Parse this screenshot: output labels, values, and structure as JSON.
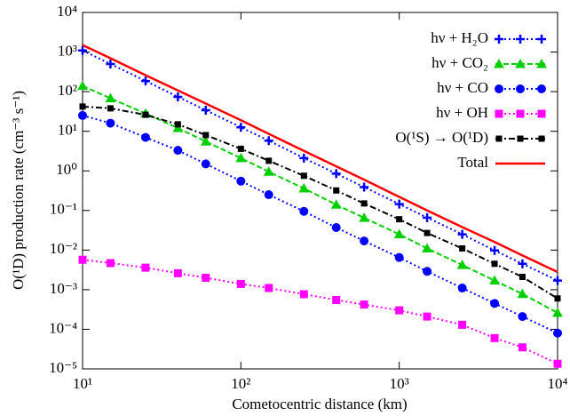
{
  "chart_data": {
    "type": "line",
    "xlabel": "Cometocentric distance (km)",
    "ylabel": "O(¹D) production rate (cm⁻³ s⁻¹)",
    "xscale": "log",
    "yscale": "log",
    "xlim": [
      10,
      10000
    ],
    "ylim": [
      1e-05,
      10000
    ],
    "xticks": [
      {
        "value": 10,
        "label": "10¹"
      },
      {
        "value": 100,
        "label": "10²"
      },
      {
        "value": 1000,
        "label": "10³"
      },
      {
        "value": 10000,
        "label": "10⁴"
      }
    ],
    "yticks": [
      {
        "value": 1e-05,
        "label": "10⁻⁵"
      },
      {
        "value": 0.0001,
        "label": "10⁻⁴"
      },
      {
        "value": 0.001,
        "label": "10⁻³"
      },
      {
        "value": 0.01,
        "label": "10⁻²"
      },
      {
        "value": 0.1,
        "label": "10⁻¹"
      },
      {
        "value": 1,
        "label": "10⁰"
      },
      {
        "value": 10,
        "label": "10¹"
      },
      {
        "value": 100,
        "label": "10²"
      },
      {
        "value": 1000,
        "label": "10³"
      },
      {
        "value": 10000,
        "label": "10⁴"
      }
    ],
    "legend": "top-right",
    "x": [
      10,
      15,
      25,
      40,
      60,
      100,
      150,
      250,
      400,
      600,
      1000,
      1500,
      2500,
      4000,
      6000,
      10000
    ],
    "series": [
      {
        "name": "hν + H₂O",
        "color": "#0000ff",
        "marker": "plus",
        "dash": "dotted",
        "values": [
          1100,
          500,
          186,
          74,
          34,
          12.6,
          5.8,
          2.1,
          0.85,
          0.39,
          0.145,
          0.066,
          0.025,
          0.0098,
          0.0045,
          0.0017
        ]
      },
      {
        "name": "hν + CO₂",
        "color": "#00d000",
        "marker": "triangle",
        "dash": "dashed",
        "values": [
          140,
          68,
          28,
          12,
          5.5,
          2.1,
          0.95,
          0.36,
          0.14,
          0.065,
          0.025,
          0.011,
          0.0042,
          0.0017,
          0.00078,
          0.00026
        ]
      },
      {
        "name": "hν + CO",
        "color": "#0000ff",
        "marker": "circle",
        "dash": "dotted",
        "values": [
          25,
          16,
          7,
          3.3,
          1.5,
          0.55,
          0.25,
          0.095,
          0.037,
          0.017,
          0.0065,
          0.0029,
          0.0011,
          0.00045,
          0.00021,
          8e-05
        ]
      },
      {
        "name": "hν + OH",
        "color": "#ff00ff",
        "marker": "square",
        "dash": "dotted",
        "values": [
          0.0057,
          0.0047,
          0.0036,
          0.0026,
          0.002,
          0.0014,
          0.0011,
          0.00077,
          0.00055,
          0.00042,
          0.0003,
          0.00021,
          0.00013,
          6e-05,
          3.5e-05,
          1.35e-05
        ]
      },
      {
        "name": "O(¹S) → O(¹D)",
        "color": "#000000",
        "marker": "smallsquare",
        "dash": "dashdot",
        "values": [
          42,
          38,
          26,
          15,
          8,
          3.6,
          1.8,
          0.75,
          0.32,
          0.15,
          0.06,
          0.027,
          0.011,
          0.0045,
          0.0021,
          0.0006
        ]
      },
      {
        "name": "Total",
        "color": "#ff0000",
        "marker": "none",
        "dash": "solid",
        "values": [
          1500,
          700,
          260,
          107,
          50,
          19,
          8.6,
          3.2,
          1.3,
          0.6,
          0.22,
          0.1,
          0.038,
          0.016,
          0.0073,
          0.0028
        ]
      }
    ]
  }
}
